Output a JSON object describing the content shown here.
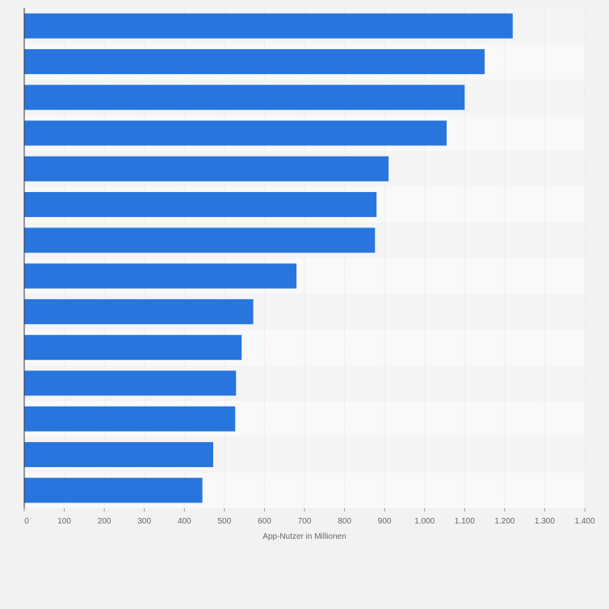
{
  "chart_data": {
    "type": "bar",
    "orientation": "horizontal",
    "categories": [
      "",
      "",
      "",
      "",
      "",
      "",
      "",
      "",
      "",
      "",
      "",
      "",
      "",
      ""
    ],
    "values": [
      1220,
      1150,
      1100,
      1055,
      910,
      880,
      876,
      680,
      572,
      543,
      529,
      527,
      472,
      445
    ],
    "xlabel": "App-Nutzer in Millionen",
    "ylabel": "",
    "xlim": [
      0,
      1400
    ],
    "xticks": [
      0,
      100,
      200,
      300,
      400,
      500,
      600,
      700,
      800,
      900,
      1000,
      1100,
      1200,
      1300,
      1400
    ],
    "xtick_labels": [
      "0",
      "100",
      "200",
      "300",
      "400",
      "500",
      "600",
      "700",
      "800",
      "900",
      "1.000",
      "1.100",
      "1.200",
      "1.300",
      "1.400"
    ],
    "grid": true,
    "bar_color": "#2876dd",
    "band_colors": [
      "#f4f4f4",
      "#f9f9f9"
    ]
  }
}
